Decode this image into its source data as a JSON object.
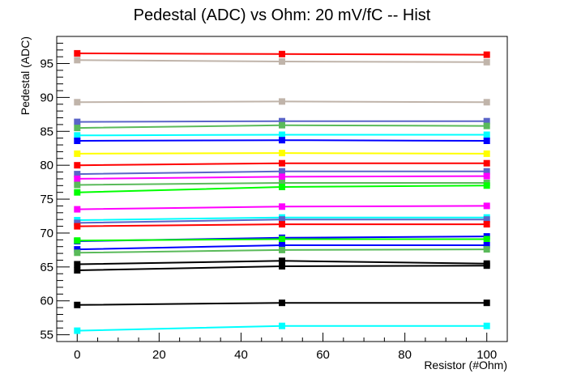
{
  "chart_data": {
    "type": "line",
    "title": "Pedestal (ADC) vs Ohm: 20 mV/fC -- Hist",
    "xlabel": "Resistor (#Ohm)",
    "ylabel": "Pedestal (ADC)",
    "xlim": [
      -5,
      105
    ],
    "ylim": [
      54,
      99
    ],
    "x_ticks": [
      0,
      20,
      40,
      60,
      80,
      100
    ],
    "y_ticks": [
      55,
      60,
      65,
      70,
      75,
      80,
      85,
      90,
      95
    ],
    "x_tick_labels": [
      "0",
      "20",
      "40",
      "60",
      "80",
      "100"
    ],
    "y_tick_labels": [
      "55",
      "60",
      "65",
      "70",
      "75",
      "80",
      "85",
      "90",
      "95"
    ],
    "x": [
      0,
      50,
      100
    ],
    "grid": false,
    "series": [
      {
        "color": "#ff0000",
        "marker": "square",
        "values": [
          96.5,
          96.4,
          96.3
        ]
      },
      {
        "color": "#c0b4aa",
        "marker": "square",
        "values": [
          95.5,
          95.3,
          95.2
        ]
      },
      {
        "color": "#c0b4aa",
        "marker": "square",
        "values": [
          89.3,
          89.4,
          89.3
        ]
      },
      {
        "color": "#5a64c8",
        "marker": "square",
        "values": [
          86.4,
          86.5,
          86.5
        ]
      },
      {
        "color": "#5aba5a",
        "marker": "square",
        "values": [
          85.5,
          85.9,
          85.8
        ]
      },
      {
        "color": "#00ffff",
        "marker": "square",
        "values": [
          84.4,
          84.5,
          84.5
        ]
      },
      {
        "color": "#0000ff",
        "marker": "square",
        "values": [
          83.6,
          83.7,
          83.6
        ]
      },
      {
        "color": "#ffff00",
        "marker": "square",
        "values": [
          81.7,
          81.8,
          81.7
        ]
      },
      {
        "color": "#ff0000",
        "marker": "square",
        "values": [
          80.0,
          80.3,
          80.3
        ]
      },
      {
        "color": "#5a64c8",
        "marker": "square",
        "values": [
          78.7,
          79.1,
          79.1
        ]
      },
      {
        "color": "#ff00ff",
        "marker": "square",
        "values": [
          78.0,
          78.3,
          78.4
        ]
      },
      {
        "color": "#5aba5a",
        "marker": "square",
        "values": [
          77.1,
          77.4,
          77.4
        ]
      },
      {
        "color": "#00ff00",
        "marker": "square",
        "values": [
          76.0,
          76.8,
          77.0
        ]
      },
      {
        "color": "#ff00ff",
        "marker": "square",
        "values": [
          73.5,
          73.9,
          74.0
        ]
      },
      {
        "color": "#00ffff",
        "marker": "square",
        "values": [
          71.9,
          72.3,
          72.3
        ]
      },
      {
        "color": "#5a64c8",
        "marker": "square",
        "values": [
          71.5,
          72.0,
          72.0
        ]
      },
      {
        "color": "#ff0000",
        "marker": "square",
        "values": [
          71.0,
          71.3,
          71.3
        ]
      },
      {
        "color": "#0000ff",
        "marker": "square",
        "values": [
          68.8,
          69.3,
          69.5
        ]
      },
      {
        "color": "#00ff00",
        "marker": "square",
        "values": [
          68.9,
          69.1,
          69.1
        ]
      },
      {
        "color": "#0000ff",
        "marker": "square",
        "values": [
          67.6,
          68.2,
          68.2
        ]
      },
      {
        "color": "#5aba5a",
        "marker": "square",
        "values": [
          67.1,
          67.5,
          67.6
        ]
      },
      {
        "color": "#000000",
        "marker": "square",
        "values": [
          65.4,
          65.9,
          65.5
        ]
      },
      {
        "color": "#000000",
        "marker": "square",
        "values": [
          64.5,
          65.1,
          65.2
        ]
      },
      {
        "color": "#000000",
        "marker": "square",
        "values": [
          59.4,
          59.7,
          59.7
        ]
      },
      {
        "color": "#00ffff",
        "marker": "square",
        "values": [
          55.6,
          56.3,
          56.3
        ]
      }
    ]
  }
}
